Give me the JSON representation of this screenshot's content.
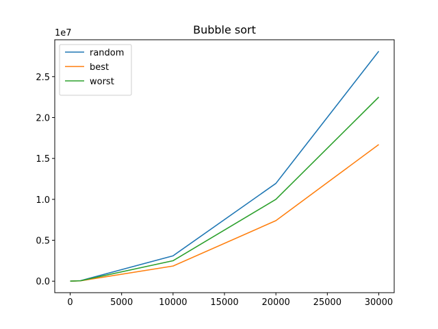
{
  "chart_data": {
    "type": "line",
    "title": "Bubble sort",
    "xlabel": "",
    "ylabel": "",
    "y_offset_label": "1e7",
    "x": [
      0,
      1000,
      10000,
      20000,
      30000
    ],
    "series": [
      {
        "name": "random",
        "color": "#1f77b4",
        "values": [
          0,
          60000,
          3100000,
          11950000,
          28100000
        ]
      },
      {
        "name": "best",
        "color": "#ff7f0e",
        "values": [
          0,
          40000,
          1850000,
          7400000,
          16700000
        ]
      },
      {
        "name": "worst",
        "color": "#2ca02c",
        "values": [
          0,
          50000,
          2500000,
          10000000,
          22500000
        ]
      }
    ],
    "xlim": [
      -1500,
      31500
    ],
    "ylim": [
      -1405000,
      29505000
    ],
    "x_ticks": [
      0,
      5000,
      10000,
      15000,
      20000,
      25000,
      30000
    ],
    "x_tick_labels": [
      "0",
      "5000",
      "10000",
      "15000",
      "20000",
      "25000",
      "30000"
    ],
    "y_ticks": [
      0,
      5000000,
      10000000,
      15000000,
      20000000,
      25000000
    ],
    "y_tick_labels": [
      "0.0",
      "0.5",
      "1.0",
      "1.5",
      "2.0",
      "2.5"
    ],
    "grid": false,
    "legend_position": "upper-left"
  }
}
